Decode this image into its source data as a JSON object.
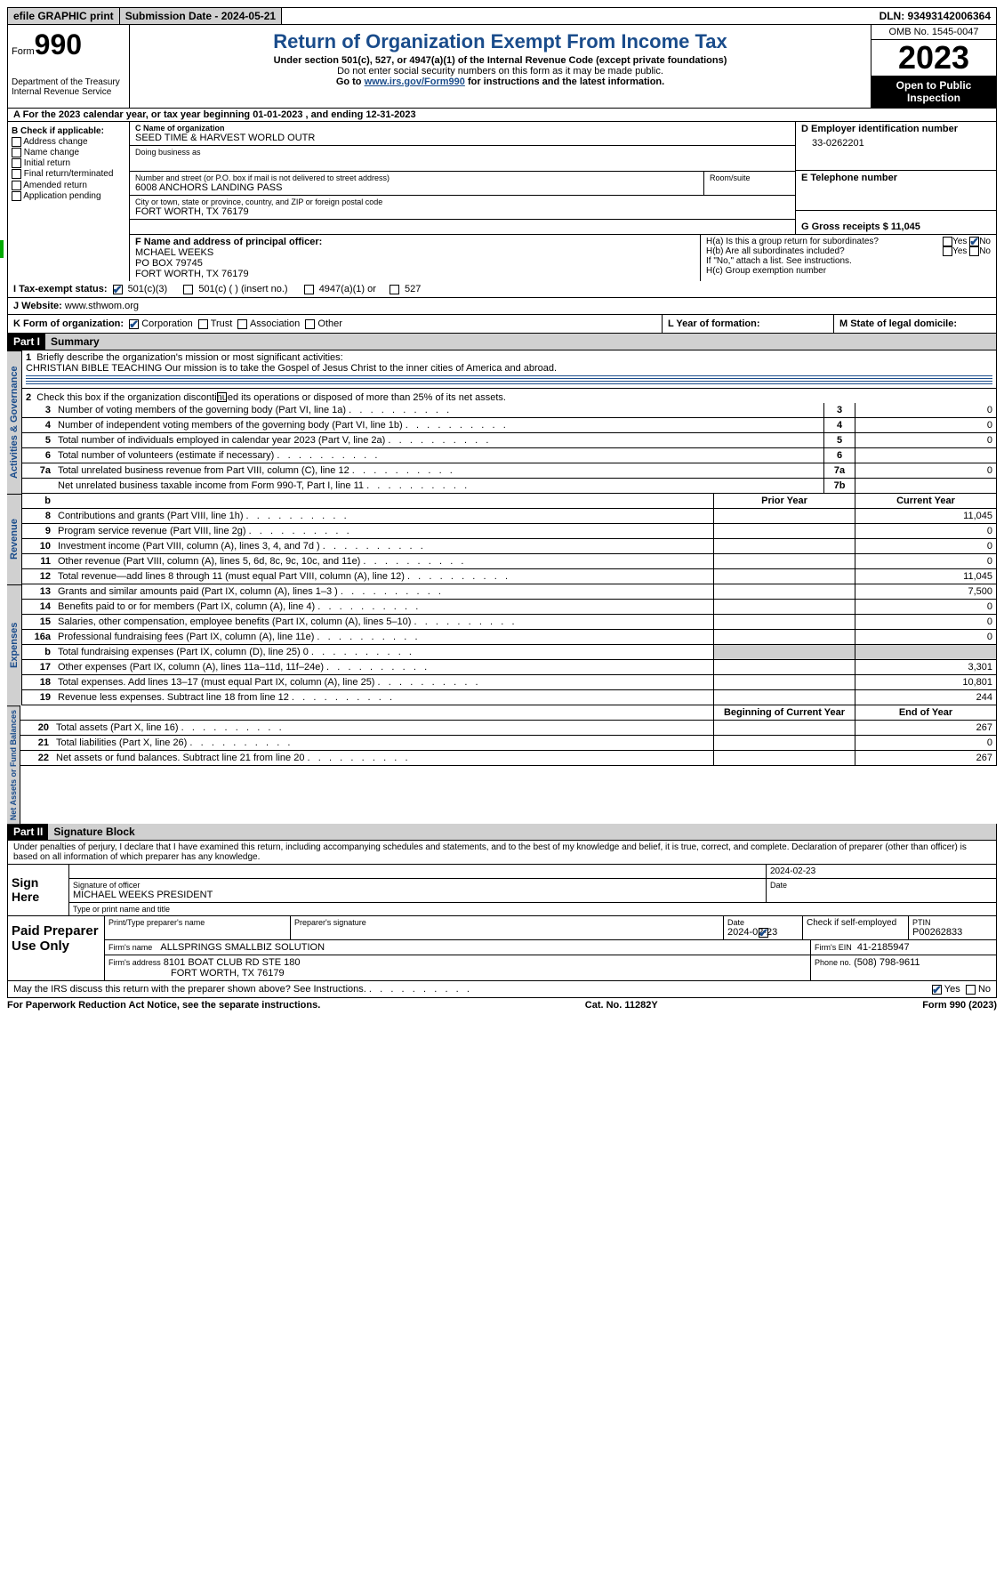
{
  "topbar": {
    "efile": "efile GRAPHIC print",
    "submission_label": "Submission Date - 2024-05-21",
    "dln_label": "DLN: 93493142006364"
  },
  "header": {
    "form_prefix": "Form",
    "form_number": "990",
    "dept": "Department of the Treasury",
    "irs": "Internal Revenue Service",
    "title": "Return of Organization Exempt From Income Tax",
    "subtitle": "Under section 501(c), 527, or 4947(a)(1) of the Internal Revenue Code (except private foundations)",
    "ssn_note": "Do not enter social security numbers on this form as it may be made public.",
    "goto": "Go to ",
    "goto_link": "www.irs.gov/Form990",
    "goto_suffix": " for instructions and the latest information.",
    "omb": "OMB No. 1545-0047",
    "year": "2023",
    "open": "Open to Public Inspection"
  },
  "row_a": "A For the 2023 calendar year, or tax year beginning 01-01-2023    , and ending 12-31-2023",
  "col_b": {
    "header": "B Check if applicable:",
    "items": [
      "Address change",
      "Name change",
      "Initial return",
      "Final return/terminated",
      "Amended return",
      "Application pending"
    ]
  },
  "block_c": {
    "name_label": "C Name of organization",
    "name": "SEED TIME & HARVEST WORLD OUTR",
    "dba_label": "Doing business as",
    "addr_label": "Number and street (or P.O. box if mail is not delivered to street address)",
    "addr": "6008 ANCHORS LANDING PASS",
    "room_label": "Room/suite",
    "city_label": "City or town, state or province, country, and ZIP or foreign postal code",
    "city": "FORT WORTH, TX  76179"
  },
  "block_d": {
    "label": "D Employer identification number",
    "value": "33-0262201",
    "e_label": "E Telephone number",
    "g_label": "G Gross receipts $ 11,045"
  },
  "block_f": {
    "label": "F  Name and address of principal officer:",
    "name": "MCHAEL WEEKS",
    "po": "PO BOX 79745",
    "city": "FORT WORTH, TX  76179"
  },
  "block_h": {
    "ha": "H(a)  Is this a group return for subordinates?",
    "hb": "H(b)  Are all subordinates included?",
    "hb_note": "If \"No,\" attach a list. See instructions.",
    "hc": "H(c)  Group exemption number",
    "yes": "Yes",
    "no": "No"
  },
  "row_i": {
    "label": "I   Tax-exempt status:",
    "c3": "501(c)(3)",
    "c": "501(c) (  ) (insert no.)",
    "a1": "4947(a)(1) or",
    "s527": "527"
  },
  "row_j": {
    "label": "J   Website:",
    "value": " www.sthwom.org"
  },
  "row_k": {
    "label": "K Form of organization:",
    "corp": "Corporation",
    "trust": "Trust",
    "assoc": "Association",
    "other": "Other",
    "l": "L Year of formation:",
    "m": "M State of legal domicile:"
  },
  "part1": {
    "header": "Part I",
    "title": "Summary"
  },
  "summary": {
    "l1_label": "Briefly describe the organization's mission or most significant activities:",
    "l1_text": "CHRISTIAN BIBLE TEACHING Our mission is to take the Gospel of Jesus Christ to the inner cities of America and abroad.",
    "l2": "Check this box      if the organization discontinued its operations or disposed of more than 25% of its net assets.",
    "lines_gov": [
      {
        "n": "3",
        "d": "Number of voting members of the governing body (Part VI, line 1a)",
        "box": "3",
        "v": "0"
      },
      {
        "n": "4",
        "d": "Number of independent voting members of the governing body (Part VI, line 1b)",
        "box": "4",
        "v": "0"
      },
      {
        "n": "5",
        "d": "Total number of individuals employed in calendar year 2023 (Part V, line 2a)",
        "box": "5",
        "v": "0"
      },
      {
        "n": "6",
        "d": "Total number of volunteers (estimate if necessary)",
        "box": "6",
        "v": ""
      },
      {
        "n": "7a",
        "d": "Total unrelated business revenue from Part VIII, column (C), line 12",
        "box": "7a",
        "v": "0"
      },
      {
        "n": "",
        "d": "Net unrelated business taxable income from Form 990-T, Part I, line 11",
        "box": "7b",
        "v": ""
      }
    ],
    "prior_header": "Prior Year",
    "curr_header": "Current Year",
    "rev": [
      {
        "n": "8",
        "d": "Contributions and grants (Part VIII, line 1h)",
        "p": "",
        "c": "11,045"
      },
      {
        "n": "9",
        "d": "Program service revenue (Part VIII, line 2g)",
        "p": "",
        "c": "0"
      },
      {
        "n": "10",
        "d": "Investment income (Part VIII, column (A), lines 3, 4, and 7d )",
        "p": "",
        "c": "0"
      },
      {
        "n": "11",
        "d": "Other revenue (Part VIII, column (A), lines 5, 6d, 8c, 9c, 10c, and 11e)",
        "p": "",
        "c": "0"
      },
      {
        "n": "12",
        "d": "Total revenue—add lines 8 through 11 (must equal Part VIII, column (A), line 12)",
        "p": "",
        "c": "11,045"
      }
    ],
    "exp": [
      {
        "n": "13",
        "d": "Grants and similar amounts paid (Part IX, column (A), lines 1–3 )",
        "p": "",
        "c": "7,500"
      },
      {
        "n": "14",
        "d": "Benefits paid to or for members (Part IX, column (A), line 4)",
        "p": "",
        "c": "0"
      },
      {
        "n": "15",
        "d": "Salaries, other compensation, employee benefits (Part IX, column (A), lines 5–10)",
        "p": "",
        "c": "0"
      },
      {
        "n": "16a",
        "d": "Professional fundraising fees (Part IX, column (A), line 11e)",
        "p": "",
        "c": "0"
      },
      {
        "n": "b",
        "d": "Total fundraising expenses (Part IX, column (D), line 25) 0",
        "p": "GREY",
        "c": "GREY"
      },
      {
        "n": "17",
        "d": "Other expenses (Part IX, column (A), lines 11a–11d, 11f–24e)",
        "p": "",
        "c": "3,301"
      },
      {
        "n": "18",
        "d": "Total expenses. Add lines 13–17 (must equal Part IX, column (A), line 25)",
        "p": "",
        "c": "10,801"
      },
      {
        "n": "19",
        "d": "Revenue less expenses. Subtract line 18 from line 12",
        "p": "",
        "c": "244"
      }
    ],
    "boy_header": "Beginning of Current Year",
    "eoy_header": "End of Year",
    "net": [
      {
        "n": "20",
        "d": "Total assets (Part X, line 16)",
        "p": "",
        "c": "267"
      },
      {
        "n": "21",
        "d": "Total liabilities (Part X, line 26)",
        "p": "",
        "c": "0"
      },
      {
        "n": "22",
        "d": "Net assets or fund balances. Subtract line 21 from line 20",
        "p": "",
        "c": "267"
      }
    ]
  },
  "sides": {
    "gov": "Activities & Governance",
    "rev": "Revenue",
    "exp": "Expenses",
    "net": "Net Assets or Fund Balances"
  },
  "part2": {
    "header": "Part II",
    "title": "Signature Block"
  },
  "sig_declaration": "Under penalties of perjury, I declare that I have examined this return, including accompanying schedules and statements, and to the best of my knowledge and belief, it is true, correct, and complete. Declaration of preparer (other than officer) is based on all information of which preparer has any knowledge.",
  "sign_here": {
    "label": "Sign Here",
    "sig_officer_label": "Signature of officer",
    "officer": "MICHAEL WEEKS PRESIDENT",
    "name_label": "Type or print name and title",
    "date_label": "Date",
    "date": "2024-02-23"
  },
  "paid_prep": {
    "label": "Paid Preparer Use Only",
    "print_label": "Print/Type preparer's name",
    "sig_label": "Preparer's signature",
    "date_label": "Date",
    "date": "2024-02-23",
    "check_label": "Check         if self-employed",
    "ptin_label": "PTIN",
    "ptin": "P00262833",
    "firm_name_label": "Firm's name",
    "firm_name": "ALLSPRINGS SMALLBIZ SOLUTION",
    "firm_ein_label": "Firm's EIN",
    "firm_ein": "41-2185947",
    "firm_addr_label": "Firm's address",
    "firm_addr1": "8101 BOAT CLUB RD STE 180",
    "firm_addr2": "FORT WORTH, TX  76179",
    "phone_label": "Phone no.",
    "phone": "(508) 798-9611"
  },
  "discuss": {
    "text": "May the IRS discuss this return with the preparer shown above? See Instructions.",
    "yes": "Yes",
    "no": "No"
  },
  "footer": {
    "left": "For Paperwork Reduction Act Notice, see the separate instructions.",
    "mid": "Cat. No. 11282Y",
    "right_prefix": "Form ",
    "right_form": "990",
    "right_suffix": " (2023)"
  }
}
